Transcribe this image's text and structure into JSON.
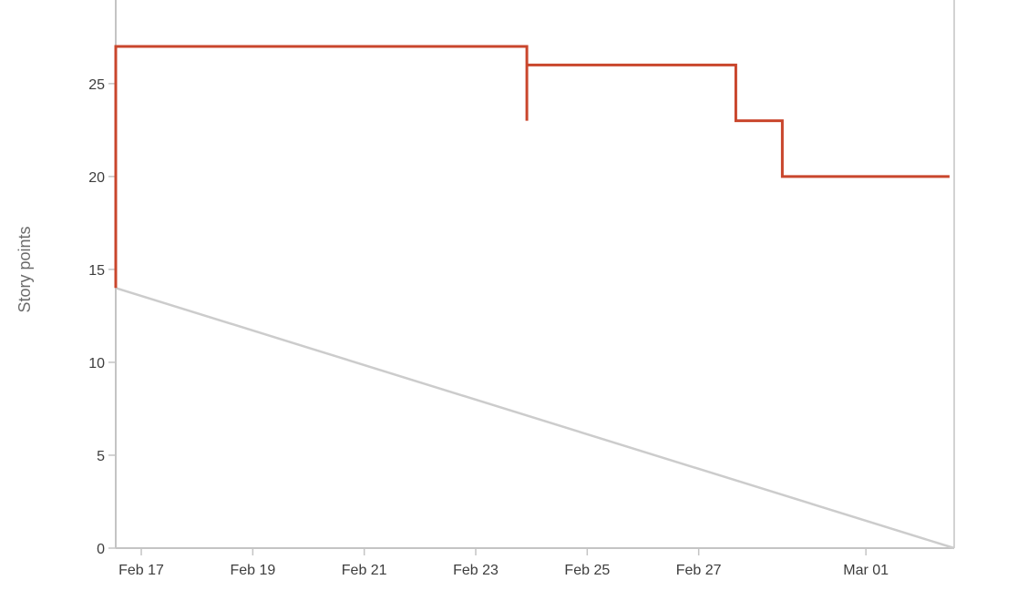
{
  "chart_data": {
    "type": "line",
    "title": "",
    "xlabel": "",
    "ylabel": "Story points",
    "x_tick_labels": [
      "Feb 17",
      "Feb 19",
      "Feb 21",
      "Feb 23",
      "Feb 25",
      "Feb 27",
      "Mar 01"
    ],
    "x_tick_dates": [
      "2024-02-17",
      "2024-02-19",
      "2024-02-21",
      "2024-02-23",
      "2024-02-25",
      "2024-02-27",
      "2024-03-01"
    ],
    "xlim": [
      "2024-02-16T13:00",
      "2024-03-02T14:00"
    ],
    "y_ticks": [
      0,
      5,
      10,
      15,
      20,
      25
    ],
    "ylim": [
      0,
      29.5
    ],
    "grid": false,
    "legend": "none",
    "series": [
      {
        "color": "#c9462c",
        "interpolation": "step",
        "points": [
          {
            "x": "2024-02-16T13:00",
            "y": 14
          },
          {
            "x": "2024-02-16T13:00",
            "y": 27
          },
          {
            "x": "2024-02-23T22:00",
            "y": 27
          },
          {
            "x": "2024-02-23T22:00",
            "y": 23
          },
          {
            "x": "2024-02-23T22:00",
            "y": 26
          },
          {
            "x": "2024-02-27T16:00",
            "y": 26
          },
          {
            "x": "2024-02-27T16:00",
            "y": 23
          },
          {
            "x": "2024-02-28T12:00",
            "y": 23
          },
          {
            "x": "2024-02-28T12:00",
            "y": 20
          },
          {
            "x": "2024-03-02T12:00",
            "y": 20
          }
        ]
      },
      {
        "color": "#cccccc",
        "interpolation": "linear",
        "points": [
          {
            "x": "2024-02-16T13:00",
            "y": 14
          },
          {
            "x": "2024-03-02T14:00",
            "y": 0
          }
        ]
      }
    ]
  }
}
